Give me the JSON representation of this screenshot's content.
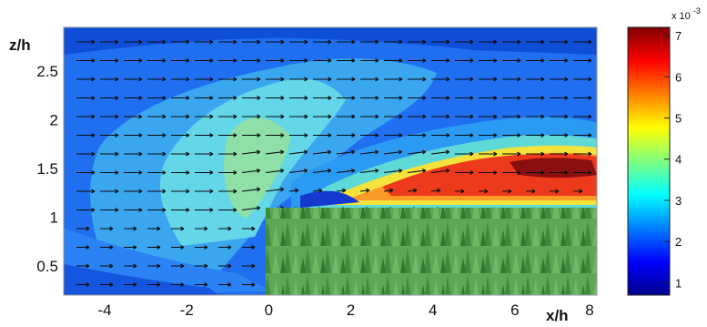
{
  "chart_data": {
    "type": "heatmap",
    "title": "",
    "xlabel": "x/h",
    "ylabel": "z/h",
    "xlim": [
      -5,
      8
    ],
    "ylim": [
      0.2,
      2.95
    ],
    "x_ticks": [
      -4,
      -2,
      0,
      2,
      4,
      6,
      8
    ],
    "y_ticks": [
      0.5,
      1,
      1.5,
      2,
      2.5
    ],
    "overlay": "velocity vector arrows",
    "canopy": {
      "x_start": 0,
      "x_end": 8,
      "z_top": 1.0,
      "fill_color": "#4f9a4a"
    },
    "colorbar": {
      "range": [
        0.7,
        7.2
      ],
      "ticks": [
        1,
        2,
        3,
        4,
        5,
        6,
        7
      ],
      "scale_label": "x 10",
      "scale_exponent": "-3",
      "colormap": "jet"
    },
    "field_levels_approx": [
      {
        "region": "upstream freestream above z/h 2.5",
        "value": 2.2
      },
      {
        "region": "upstream central plume x/h -3 to 1",
        "value": 3.3
      },
      {
        "region": "lower upstream near ground",
        "value": 1.5
      },
      {
        "region": "shear layer above canopy x/h 2 to 8, z/h 1.2 to 1.7",
        "value": 5.5
      },
      {
        "region": "peak near x/h 7, z/h 1.5",
        "value": 7.0
      }
    ]
  }
}
